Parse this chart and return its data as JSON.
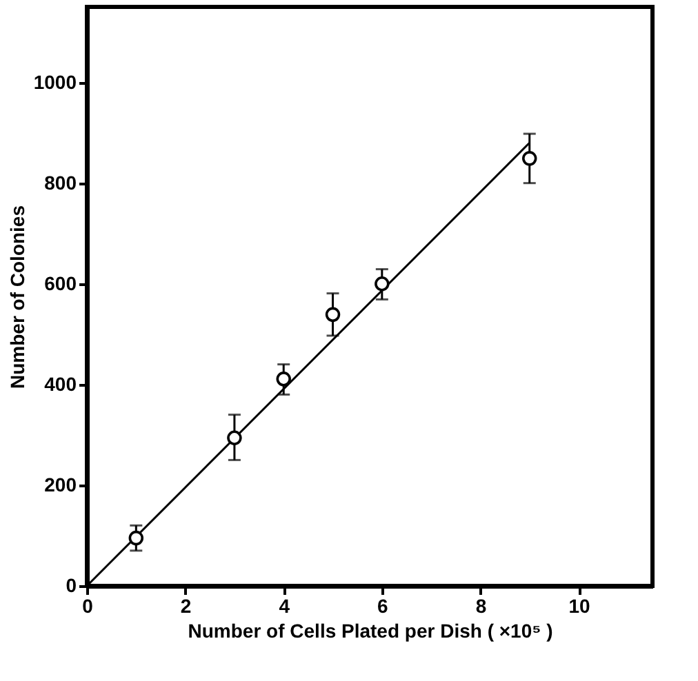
{
  "chart_data": {
    "type": "scatter",
    "xlabel": "Number of Cells Plated per Dish ( ×10⁵ )",
    "ylabel": "Number of Colonies",
    "xlim": [
      0,
      11.5
    ],
    "xticks": [
      0,
      2,
      4,
      6,
      8,
      10
    ],
    "ylim": [
      0,
      1150
    ],
    "yticks": [
      0,
      200,
      400,
      600,
      800,
      1000
    ],
    "grid": false,
    "series": [
      {
        "color": "#000000",
        "marker": "circle",
        "x": [
          1,
          3,
          4,
          5,
          6,
          9
        ],
        "values": [
          95,
          294,
          411,
          539,
          600,
          849
        ],
        "errors": [
          [
            70,
            120
          ],
          [
            250,
            340
          ],
          [
            380,
            440
          ],
          [
            497,
            581
          ],
          [
            569,
            629
          ],
          [
            800,
            898
          ]
        ]
      },
      {
        "type": "line",
        "color": "#000000",
        "line_style": "solid",
        "marker": "none",
        "x": [
          0,
          9
        ],
        "values": [
          0,
          880
        ]
      }
    ]
  }
}
